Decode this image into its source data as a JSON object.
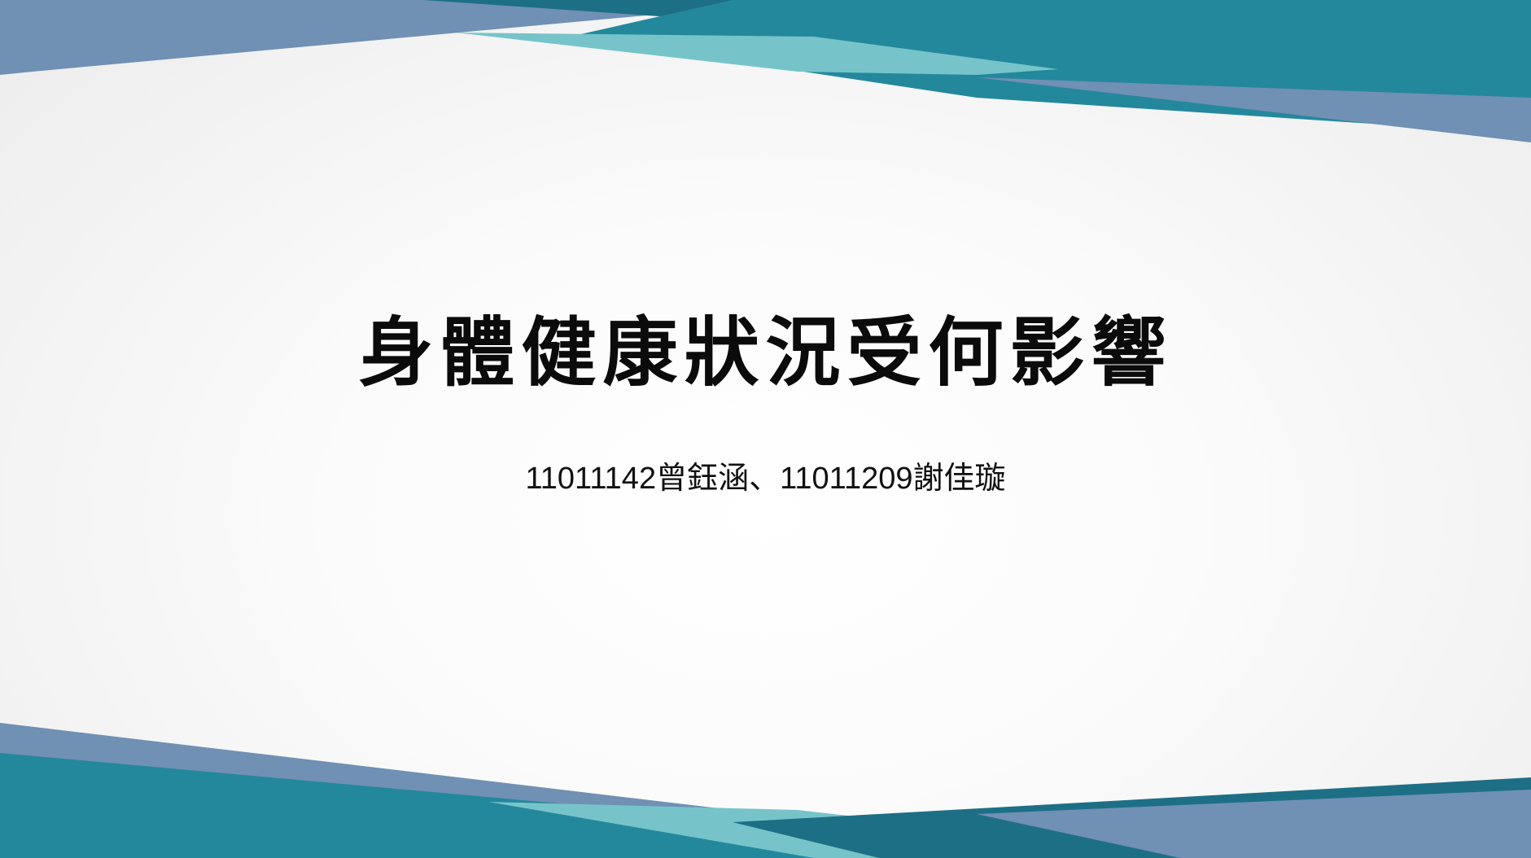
{
  "slide": {
    "title": "身體健康狀況受何影響",
    "subtitle": "11011142曾鈺涵、11011209謝佳璇"
  },
  "colors": {
    "teal": "#24889c",
    "dark_teal": "#1d6f86",
    "steel_blue": "#7090b4",
    "light_teal": "#76c4ca",
    "text": "#0b0b0b"
  }
}
